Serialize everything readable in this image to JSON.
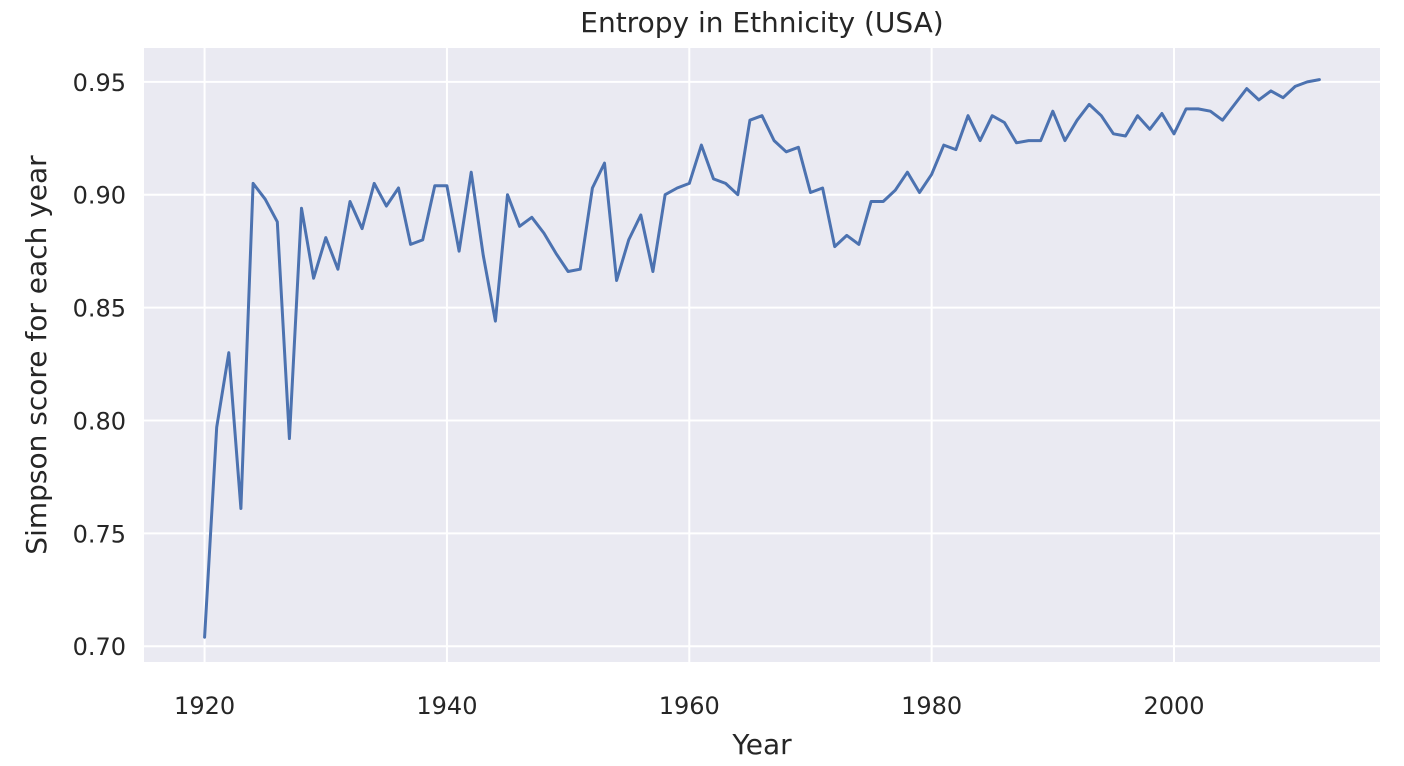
{
  "chart_data": {
    "type": "line",
    "title": "Entropy in Ethnicity (USA)",
    "xlabel": "Year",
    "ylabel": "Simpson score for each year",
    "xlim": [
      1915,
      2017
    ],
    "ylim": [
      0.693,
      0.965
    ],
    "x_ticks": [
      1920,
      1940,
      1960,
      1980,
      2000
    ],
    "y_ticks": [
      0.7,
      0.75,
      0.8,
      0.85,
      0.9,
      0.95
    ],
    "y_tick_labels": [
      "0.70",
      "0.75",
      "0.80",
      "0.85",
      "0.90",
      "0.95"
    ],
    "grid": true,
    "series": [
      {
        "color": "#4c72b0",
        "x": [
          1920,
          1921,
          1922,
          1923,
          1924,
          1925,
          1926,
          1927,
          1928,
          1929,
          1930,
          1931,
          1932,
          1933,
          1934,
          1935,
          1936,
          1937,
          1938,
          1939,
          1940,
          1941,
          1942,
          1943,
          1944,
          1945,
          1946,
          1947,
          1948,
          1949,
          1950,
          1951,
          1952,
          1953,
          1954,
          1955,
          1956,
          1957,
          1958,
          1959,
          1960,
          1961,
          1962,
          1963,
          1964,
          1965,
          1966,
          1967,
          1968,
          1969,
          1970,
          1971,
          1972,
          1973,
          1974,
          1975,
          1976,
          1977,
          1978,
          1979,
          1980,
          1981,
          1982,
          1983,
          1984,
          1985,
          1986,
          1987,
          1988,
          1989,
          1990,
          1991,
          1992,
          1993,
          1994,
          1995,
          1996,
          1997,
          1998,
          1999,
          2000,
          2001,
          2002,
          2003,
          2004,
          2005,
          2006,
          2007,
          2008,
          2009,
          2010,
          2011,
          2012
        ],
        "y": [
          0.704,
          0.797,
          0.83,
          0.761,
          0.905,
          0.898,
          0.888,
          0.792,
          0.894,
          0.863,
          0.881,
          0.867,
          0.897,
          0.885,
          0.905,
          0.895,
          0.903,
          0.878,
          0.88,
          0.904,
          0.904,
          0.875,
          0.91,
          0.873,
          0.844,
          0.9,
          0.886,
          0.89,
          0.883,
          0.874,
          0.866,
          0.867,
          0.903,
          0.914,
          0.862,
          0.88,
          0.891,
          0.866,
          0.9,
          0.903,
          0.905,
          0.922,
          0.907,
          0.905,
          0.9,
          0.933,
          0.935,
          0.924,
          0.919,
          0.921,
          0.901,
          0.903,
          0.877,
          0.882,
          0.878,
          0.897,
          0.897,
          0.902,
          0.91,
          0.901,
          0.909,
          0.922,
          0.92,
          0.935,
          0.924,
          0.935,
          0.932,
          0.923,
          0.924,
          0.924,
          0.937,
          0.924,
          0.933,
          0.94,
          0.935,
          0.927,
          0.926,
          0.935,
          0.929,
          0.936,
          0.927,
          0.938,
          0.938,
          0.937,
          0.933,
          0.94,
          0.947,
          0.942,
          0.946,
          0.943,
          0.948,
          0.95,
          0.951
        ]
      }
    ]
  }
}
